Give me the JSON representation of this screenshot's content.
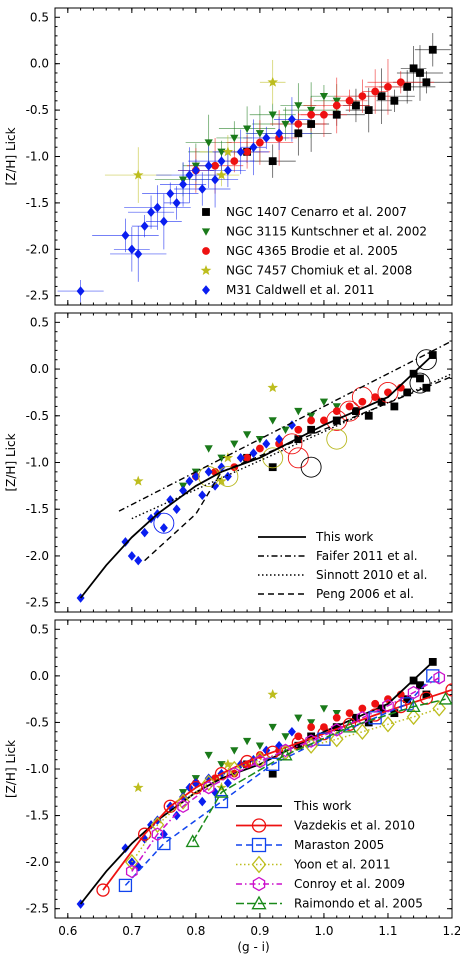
{
  "chart_data": [
    {
      "type": "scatter",
      "panel": "top",
      "ylabel": "[Z/H] Lick",
      "xlabel": "",
      "xlim": [
        0.58,
        1.2
      ],
      "ylim": [
        -2.6,
        0.6
      ],
      "yticks": [
        "0.5",
        "0.0",
        "-0.5",
        "-1.0",
        "-1.5",
        "-2.0",
        "-2.5"
      ],
      "legend_position": "lower-right",
      "series": [
        {
          "name": "NGC 1407 Cenarro et al. 2007",
          "color": "#000000",
          "marker": "square",
          "x": [
            0.88,
            0.92,
            0.96,
            0.98,
            1.02,
            1.05,
            1.07,
            1.09,
            1.11,
            1.13,
            1.14,
            1.15,
            1.16,
            1.17
          ],
          "y": [
            -0.95,
            -1.05,
            -0.75,
            -0.65,
            -0.55,
            -0.45,
            -0.5,
            -0.35,
            -0.4,
            -0.25,
            -0.05,
            -0.1,
            -0.2,
            0.15
          ]
        },
        {
          "name": "NGC 3115 Kuntschner et al. 2002",
          "color": "#1a7a1a",
          "marker": "triangle-down",
          "x": [
            0.78,
            0.8,
            0.82,
            0.84,
            0.86,
            0.88,
            0.9,
            0.92,
            0.94,
            0.96,
            0.98,
            1.0,
            1.02
          ],
          "y": [
            -1.25,
            -1.1,
            -0.85,
            -0.95,
            -0.8,
            -0.7,
            -0.75,
            -0.55,
            -0.65,
            -0.45,
            -0.5,
            -0.35,
            -0.4
          ]
        },
        {
          "name": "NGC 4365 Brodie et al. 2005",
          "color": "#ee1111",
          "marker": "circle",
          "x": [
            0.8,
            0.83,
            0.86,
            0.88,
            0.9,
            0.93,
            0.96,
            0.98,
            1.0,
            1.02,
            1.04,
            1.06,
            1.08,
            1.1,
            1.12
          ],
          "y": [
            -1.15,
            -1.1,
            -1.05,
            -0.95,
            -0.85,
            -0.8,
            -0.65,
            -0.55,
            -0.55,
            -0.45,
            -0.4,
            -0.35,
            -0.3,
            -0.25,
            -0.2
          ]
        },
        {
          "name": "NGC 7457 Chomiuk et al. 2008",
          "color": "#bdbd1e",
          "marker": "star",
          "x": [
            0.71,
            0.84,
            0.85,
            0.92
          ],
          "y": [
            -1.2,
            -1.2,
            -0.95,
            -0.2
          ]
        },
        {
          "name": "M31 Caldwell et al. 2011",
          "color": "#0a1ef0",
          "marker": "diamond",
          "x": [
            0.62,
            0.69,
            0.7,
            0.71,
            0.72,
            0.73,
            0.74,
            0.75,
            0.76,
            0.77,
            0.78,
            0.79,
            0.8,
            0.81,
            0.82,
            0.83,
            0.84,
            0.85,
            0.87,
            0.89,
            0.91,
            0.93,
            0.95
          ],
          "y": [
            -2.45,
            -1.85,
            -2.0,
            -2.05,
            -1.75,
            -1.6,
            -1.55,
            -1.7,
            -1.4,
            -1.5,
            -1.3,
            -1.2,
            -1.15,
            -1.35,
            -1.1,
            -1.25,
            -1.05,
            -1.15,
            -0.95,
            -0.9,
            -0.8,
            -0.75,
            -0.6
          ]
        }
      ]
    },
    {
      "type": "scatter",
      "panel": "middle",
      "ylabel": "[Z/H] Lick",
      "xlabel": "",
      "xlim": [
        0.58,
        1.2
      ],
      "ylim": [
        -2.6,
        0.6
      ],
      "yticks": [
        "0.5",
        "0.0",
        "-0.5",
        "-1.0",
        "-1.5",
        "-2.0",
        "-2.5"
      ],
      "legend_position": "lower-right",
      "lines": [
        {
          "name": "This work",
          "style": "solid",
          "x": [
            0.62,
            0.66,
            0.7,
            0.74,
            0.78,
            0.8,
            0.84,
            0.9,
            1.0,
            1.1,
            1.17
          ],
          "y": [
            -2.45,
            -2.1,
            -1.8,
            -1.55,
            -1.35,
            -1.25,
            -1.1,
            -0.95,
            -0.6,
            -0.3,
            0.15
          ]
        },
        {
          "name": "Faifer 2011  et al.",
          "style": "dashdot",
          "x": [
            0.68,
            1.2
          ],
          "y": [
            -1.52,
            0.3
          ]
        },
        {
          "name": "Sinnott 2010  et al.",
          "style": "dotted",
          "x": [
            0.7,
            1.2
          ],
          "y": [
            -1.6,
            -0.05
          ]
        },
        {
          "name": "Peng 2006  et al.",
          "style": "dashed",
          "x": [
            0.72,
            0.8,
            0.84,
            1.2
          ],
          "y": [
            -2.05,
            -1.55,
            -1.1,
            -0.08
          ]
        }
      ],
      "legend": [
        "This work",
        "Faifer 2011  et al.",
        "Sinnott 2010  et al.",
        "Peng 2006  et al."
      ]
    },
    {
      "type": "line",
      "panel": "bottom",
      "ylabel": "[Z/H] Lick",
      "xlabel": "(g - i)",
      "xlim": [
        0.58,
        1.2
      ],
      "ylim": [
        -2.6,
        0.6
      ],
      "xticks": [
        "0.6",
        "0.7",
        "0.8",
        "0.9",
        "1.0",
        "1.1",
        "1.2"
      ],
      "yticks": [
        "0.5",
        "0.0",
        "-0.5",
        "-1.0",
        "-1.5",
        "-2.0",
        "-2.5"
      ],
      "legend_position": "lower-right",
      "lines": [
        {
          "name": "This work",
          "color": "#000000",
          "style": "solid",
          "marker": "",
          "x": [
            0.62,
            0.66,
            0.7,
            0.74,
            0.78,
            0.8,
            0.84,
            0.9,
            1.0,
            1.1,
            1.17
          ],
          "y": [
            -2.45,
            -2.1,
            -1.8,
            -1.55,
            -1.35,
            -1.25,
            -1.1,
            -0.95,
            -0.6,
            -0.3,
            0.15
          ]
        },
        {
          "name": "Vazdekis et al. 2010",
          "color": "#ee1111",
          "style": "solid",
          "marker": "circle",
          "x": [
            0.655,
            0.72,
            0.76,
            0.8,
            0.84,
            0.88,
            0.92,
            0.96,
            1.0,
            1.04,
            1.08,
            1.12,
            1.16,
            1.2
          ],
          "y": [
            -2.3,
            -1.7,
            -1.4,
            -1.2,
            -1.05,
            -0.92,
            -0.82,
            -0.72,
            -0.62,
            -0.52,
            -0.42,
            -0.33,
            -0.24,
            -0.15
          ]
        },
        {
          "name": "Maraston 2005",
          "color": "#1144ee",
          "style": "dashed",
          "marker": "square",
          "x": [
            0.69,
            0.75,
            0.84,
            0.92,
            1.0,
            1.08,
            1.13,
            1.17
          ],
          "y": [
            -2.25,
            -1.8,
            -1.35,
            -0.95,
            -0.68,
            -0.45,
            -0.3,
            0.0
          ]
        },
        {
          "name": "Yoon et al. 2011",
          "color": "#bdbd1e",
          "style": "dotted",
          "marker": "diamond",
          "x": [
            0.7,
            0.74,
            0.78,
            0.82,
            0.86,
            0.9,
            0.94,
            0.98,
            1.02,
            1.06,
            1.1,
            1.14,
            1.18
          ],
          "y": [
            -2.0,
            -1.6,
            -1.35,
            -1.15,
            -1.0,
            -0.9,
            -0.82,
            -0.75,
            -0.68,
            -0.6,
            -0.52,
            -0.44,
            -0.35
          ]
        },
        {
          "name": "Conroy et al. 2009",
          "color": "#cc11cc",
          "style": "dashdot",
          "marker": "hexagon",
          "x": [
            0.7,
            0.74,
            0.78,
            0.82,
            0.86,
            0.9,
            0.94,
            0.98,
            1.02,
            1.06,
            1.1,
            1.14,
            1.18
          ],
          "y": [
            -2.1,
            -1.7,
            -1.4,
            -1.2,
            -1.05,
            -0.92,
            -0.8,
            -0.7,
            -0.58,
            -0.45,
            -0.32,
            -0.18,
            -0.02
          ]
        },
        {
          "name": "Raimondo et al. 2005",
          "color": "#1a8a1a",
          "style": "dashdash",
          "marker": "triangle",
          "x": [
            0.795,
            0.84,
            0.94,
            1.04,
            1.14,
            1.19
          ],
          "y": [
            -1.78,
            -1.25,
            -0.85,
            -0.55,
            -0.33,
            -0.25
          ]
        }
      ],
      "legend": [
        "This work",
        "Vazdekis et al. 2010",
        "Maraston 2005",
        "Yoon et al. 2011",
        "Conroy et al. 2009",
        "Raimondo et al. 2005"
      ]
    }
  ]
}
